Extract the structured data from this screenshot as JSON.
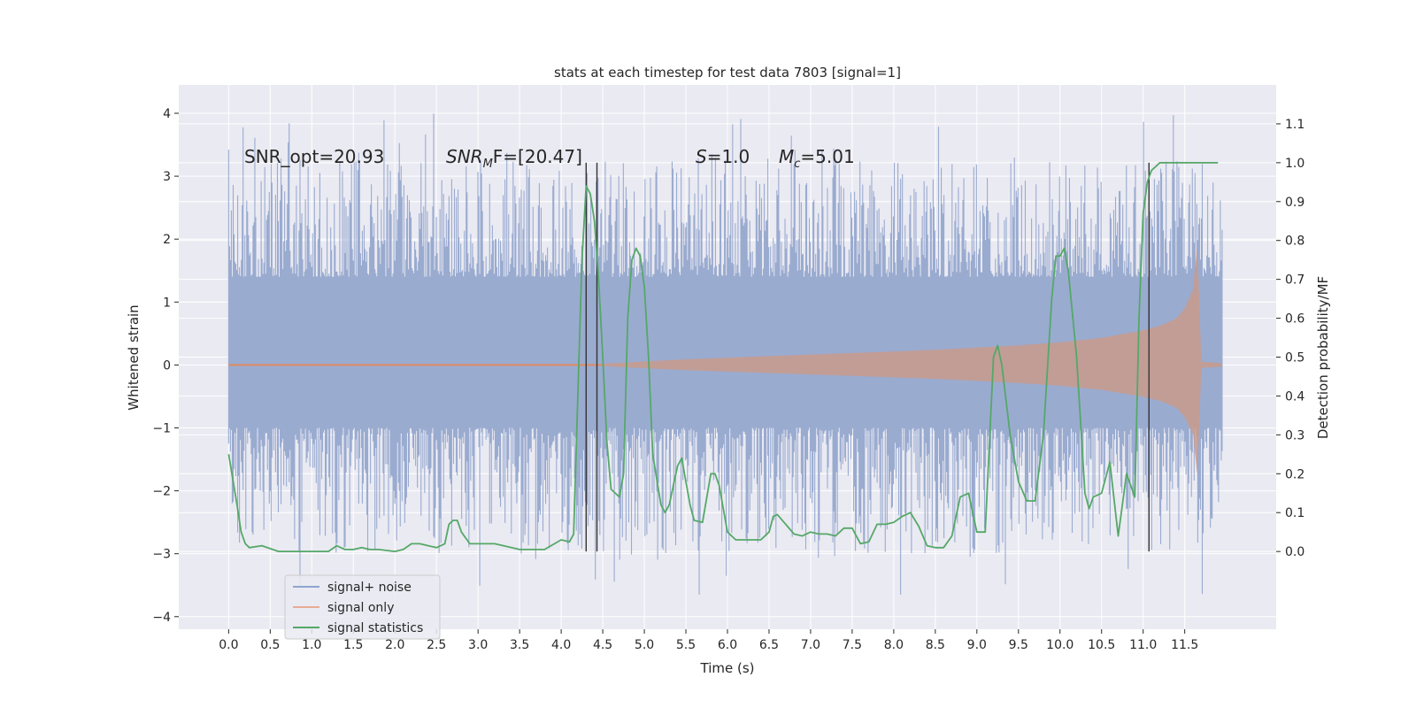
{
  "chart_data": {
    "type": "line",
    "title": "stats at each timestep for test data 7803 [signal=1]",
    "xlabel": "Time (s)",
    "ylabel": "Whitened strain",
    "ylabel_right": "Detection probability/MF",
    "xlim": [
      -0.6,
      12.6
    ],
    "ylim": [
      -4.2,
      4.45
    ],
    "ylim_right": [
      -0.2,
      1.2
    ],
    "x_ticks": [
      "0.0",
      "0.5",
      "1.0",
      "1.5",
      "2.0",
      "2.5",
      "3.0",
      "3.5",
      "4.0",
      "4.5",
      "5.0",
      "5.5",
      "6.0",
      "6.5",
      "7.0",
      "7.5",
      "8.0",
      "8.5",
      "9.0",
      "9.5",
      "10.0",
      "10.5",
      "11.0",
      "11.5"
    ],
    "y_ticks": [
      "4",
      "3",
      "2",
      "1",
      "0",
      "−1",
      "−2",
      "−3",
      "−4"
    ],
    "y_ticks_right": [
      "1.1",
      "1.0",
      "0.9",
      "0.8",
      "0.7",
      "0.6",
      "0.5",
      "0.4",
      "0.3",
      "0.2",
      "0.1",
      "0.0"
    ],
    "annotations": {
      "snr_opt": "SNR_opt=20.93",
      "snr_mf_main": "SNR",
      "snr_mf_sub": "M",
      "snr_mf_rest": "F=[20.47]",
      "s_italic": "S",
      "s_value": "=1.0",
      "mc_italic": "M",
      "mc_sub": "c",
      "mc_value": "=5.01"
    },
    "noise_band": {
      "x": [
        0.0,
        11.95
      ],
      "core_range": [
        -1.0,
        1.4
      ],
      "peak_max": 4.1,
      "peak_min": -3.75
    },
    "signal_envelope": {
      "x": [
        0.0,
        4.5,
        5.5,
        6.5,
        7.5,
        8.5,
        9.5,
        10.0,
        10.5,
        11.0,
        11.2,
        11.4,
        11.5,
        11.6,
        11.65,
        11.7,
        11.95
      ],
      "amp": [
        0.02,
        0.02,
        0.09,
        0.14,
        0.19,
        0.24,
        0.31,
        0.36,
        0.43,
        0.55,
        0.62,
        0.74,
        0.9,
        1.2,
        1.9,
        0.05,
        0.03
      ]
    },
    "vertical_lines": [
      4.3,
      4.43,
      11.07
    ],
    "series": [
      {
        "name": "signal statistics",
        "color": "#55a868",
        "x": [
          0.0,
          0.1,
          0.15,
          0.2,
          0.25,
          0.4,
          0.6,
          0.8,
          1.0,
          1.2,
          1.3,
          1.4,
          1.5,
          1.6,
          1.7,
          1.8,
          2.0,
          2.1,
          2.2,
          2.3,
          2.4,
          2.5,
          2.6,
          2.65,
          2.7,
          2.75,
          2.8,
          2.9,
          3.0,
          3.2,
          3.5,
          3.8,
          4.0,
          4.1,
          4.15,
          4.2,
          4.25,
          4.3,
          4.35,
          4.4,
          4.45,
          4.5,
          4.55,
          4.6,
          4.7,
          4.75,
          4.8,
          4.85,
          4.9,
          4.95,
          5.0,
          5.05,
          5.1,
          5.2,
          5.25,
          5.3,
          5.4,
          5.45,
          5.5,
          5.55,
          5.6,
          5.7,
          5.8,
          5.85,
          5.9,
          6.0,
          6.1,
          6.2,
          6.3,
          6.4,
          6.5,
          6.55,
          6.6,
          6.7,
          6.8,
          6.9,
          7.0,
          7.1,
          7.2,
          7.3,
          7.4,
          7.5,
          7.6,
          7.7,
          7.8,
          7.9,
          8.0,
          8.1,
          8.2,
          8.3,
          8.4,
          8.5,
          8.6,
          8.7,
          8.8,
          8.9,
          9.0,
          9.1,
          9.2,
          9.25,
          9.3,
          9.4,
          9.5,
          9.6,
          9.7,
          9.8,
          9.9,
          9.95,
          10.0,
          10.05,
          10.1,
          10.2,
          10.3,
          10.35,
          10.4,
          10.5,
          10.6,
          10.7,
          10.8,
          10.9,
          10.95,
          11.0,
          11.05,
          11.1,
          11.15,
          11.2,
          11.3,
          11.4,
          11.5,
          11.6,
          11.7,
          11.9
        ],
        "values": [
          0.25,
          0.12,
          0.05,
          0.02,
          0.01,
          0.015,
          0.0,
          0.0,
          0.0,
          0.0,
          0.015,
          0.005,
          0.005,
          0.01,
          0.005,
          0.005,
          0.0,
          0.005,
          0.02,
          0.02,
          0.015,
          0.01,
          0.02,
          0.07,
          0.08,
          0.08,
          0.05,
          0.02,
          0.02,
          0.02,
          0.005,
          0.005,
          0.03,
          0.025,
          0.045,
          0.4,
          0.75,
          0.94,
          0.92,
          0.85,
          0.7,
          0.5,
          0.28,
          0.16,
          0.14,
          0.2,
          0.6,
          0.75,
          0.78,
          0.76,
          0.68,
          0.5,
          0.25,
          0.12,
          0.1,
          0.12,
          0.22,
          0.24,
          0.18,
          0.12,
          0.08,
          0.075,
          0.2,
          0.2,
          0.17,
          0.05,
          0.03,
          0.03,
          0.03,
          0.03,
          0.05,
          0.09,
          0.095,
          0.07,
          0.045,
          0.04,
          0.05,
          0.045,
          0.045,
          0.04,
          0.06,
          0.06,
          0.02,
          0.025,
          0.07,
          0.07,
          0.075,
          0.09,
          0.1,
          0.065,
          0.015,
          0.01,
          0.01,
          0.04,
          0.14,
          0.15,
          0.05,
          0.05,
          0.5,
          0.53,
          0.48,
          0.3,
          0.18,
          0.13,
          0.13,
          0.3,
          0.65,
          0.76,
          0.76,
          0.78,
          0.72,
          0.5,
          0.15,
          0.11,
          0.14,
          0.15,
          0.23,
          0.04,
          0.2,
          0.14,
          0.6,
          0.87,
          0.95,
          0.98,
          0.99,
          1.0,
          1.0,
          1.0,
          1.0,
          1.0,
          1.0,
          1.0
        ]
      }
    ],
    "legend": {
      "placement": "lower-left",
      "entries": [
        {
          "label": "signal+ noise",
          "color": "#8fa5cf"
        },
        {
          "label": "signal only",
          "color": "#e8ab93"
        },
        {
          "label": "signal statistics",
          "color": "#55a868"
        }
      ]
    },
    "colors": {
      "background": "#eaeaf2",
      "grid": "#ffffff",
      "noise": "#9aabd0",
      "signal_only": "#c89a8c",
      "stats": "#55a868",
      "vline": "#333333"
    }
  }
}
